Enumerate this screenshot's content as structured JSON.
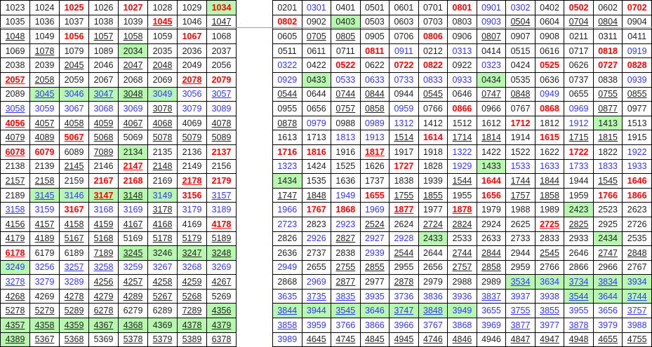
{
  "colors": {
    "red": "#ff0000",
    "blue": "#3333ff",
    "black": "#222222",
    "highlight": "#b7f7b0"
  },
  "left": {
    "values": [
      [
        "1023",
        "1024",
        "1025",
        "1026",
        "1027",
        "1028",
        "1029",
        "1034"
      ],
      [
        "1035",
        "1036",
        "1037",
        "1038",
        "1039",
        "1045",
        "1046",
        "1047"
      ],
      [
        "1048",
        "1049",
        "1056",
        "1057",
        "1058",
        "1059",
        "1067",
        "1068"
      ],
      [
        "1069",
        "1078",
        "1079",
        "1089",
        "2034",
        "2035",
        "2036",
        "2037"
      ],
      [
        "2038",
        "2039",
        "2045",
        "2046",
        "2047",
        "2048",
        "2049",
        "2056"
      ],
      [
        "2057",
        "2058",
        "2059",
        "2067",
        "2068",
        "2069",
        "2078",
        "2079"
      ],
      [
        "2089",
        "3045",
        "3046",
        "3047",
        "3048",
        "3049",
        "3056",
        "3057"
      ],
      [
        "3058",
        "3059",
        "3067",
        "3068",
        "3069",
        "3078",
        "3079",
        "3089"
      ],
      [
        "4056",
        "4057",
        "4058",
        "4059",
        "4067",
        "4068",
        "4069",
        "4078"
      ],
      [
        "4079",
        "4089",
        "5067",
        "5068",
        "5069",
        "5078",
        "5079",
        "5089"
      ],
      [
        "6078",
        "6079",
        "6089",
        "7089",
        "2134",
        "2135",
        "2136",
        "2137"
      ],
      [
        "2138",
        "2139",
        "2145",
        "2146",
        "2147",
        "2148",
        "2149",
        "2156"
      ],
      [
        "2157",
        "2158",
        "2159",
        "2167",
        "2168",
        "2169",
        "2178",
        "2179"
      ],
      [
        "2189",
        "3145",
        "3146",
        "3147",
        "3148",
        "3149",
        "3156",
        "3157"
      ],
      [
        "3158",
        "3159",
        "3167",
        "3168",
        "3169",
        "3178",
        "3179",
        "3189"
      ],
      [
        "4156",
        "4157",
        "4158",
        "4159",
        "4167",
        "4168",
        "4169",
        "4178"
      ],
      [
        "4179",
        "4189",
        "5167",
        "5168",
        "5169",
        "5178",
        "5179",
        "5189"
      ],
      [
        "6178",
        "6179",
        "6189",
        "7189",
        "3245",
        "3246",
        "3247",
        "3248"
      ],
      [
        "3249",
        "3256",
        "3257",
        "3258",
        "3259",
        "3267",
        "3268",
        "3269"
      ],
      [
        "3278",
        "3279",
        "3289",
        "4256",
        "4257",
        "4258",
        "4259",
        "4267"
      ],
      [
        "4268",
        "4269",
        "4278",
        "4279",
        "4289",
        "5267",
        "5268",
        "5269"
      ],
      [
        "5278",
        "5279",
        "5289",
        "6278",
        "6279",
        "6289",
        "7289",
        "4356"
      ],
      [
        "4357",
        "4358",
        "4359",
        "4367",
        "4368",
        "4369",
        "4378",
        "4379"
      ],
      [
        "4389",
        "5367",
        "5368",
        "5369",
        "5378",
        "5379",
        "5389",
        "6378"
      ]
    ],
    "styles": [
      "- - r - r - - rg",
      "- - - - - ru - u",
      "u - r u u - r -",
      "- u - - g - - -",
      "- - u - u u - -",
      "ru u - - - - ru r",
      "- gub gb gub gu gb b ub",
      "ub b b b b u b b",
      "ru u u u u u - u",
      "u u ru u - u u u",
      "ru r - u g - - r",
      "- - u - ru u - -",
      "u u - r r - ru r",
      "- gub gb gru gu gb r ub",
      "ub b r b b u b b",
      "u u u u u u - ru",
      "u u u u - u u u",
      "ru - - u gu g gu gu",
      "gb b ub ub b b b b",
      "ub b b u u u u u",
      "u - u u u u u -",
      "u u u u - - u gu",
      "gu gu gu gu gu g gu gu",
      "gu u u - u u u u"
    ]
  },
  "right": {
    "values": [
      [
        "0201",
        "0301",
        "0401",
        "0501",
        "0601",
        "0701",
        "0801",
        "0901",
        "0302",
        "0402",
        "0502",
        "0602",
        "0702"
      ],
      [
        "0802",
        "0902",
        "0403",
        "0503",
        "0603",
        "0703",
        "0803",
        "0903",
        "0504",
        "0604",
        "0704",
        "0804",
        "0904"
      ],
      [
        "0605",
        "0705",
        "0805",
        "0905",
        "0706",
        "0806",
        "0906",
        "0807",
        "0907",
        "0908",
        "0211",
        "0311",
        "0411"
      ],
      [
        "0511",
        "0611",
        "0711",
        "0811",
        "0911",
        "0212",
        "0313",
        "0414",
        "0515",
        "0616",
        "0717",
        "0818",
        "0919"
      ],
      [
        "0322",
        "0422",
        "0522",
        "0622",
        "0722",
        "0822",
        "0922",
        "0323",
        "0424",
        "0525",
        "0626",
        "0727",
        "0828"
      ],
      [
        "0929",
        "0433",
        "0533",
        "0633",
        "0733",
        "0833",
        "0933",
        "0434",
        "0535",
        "0636",
        "0737",
        "0838",
        "0939"
      ],
      [
        "0544",
        "0644",
        "0744",
        "0844",
        "0944",
        "0545",
        "0646",
        "0747",
        "0848",
        "0949",
        "0655",
        "0755",
        "0855"
      ],
      [
        "0955",
        "0656",
        "0757",
        "0858",
        "0959",
        "0766",
        "0866",
        "0966",
        "0767",
        "0868",
        "0969",
        "0877",
        "0977"
      ],
      [
        "0878",
        "0979",
        "0988",
        "0989",
        "1312",
        "1412",
        "1512",
        "1612",
        "1712",
        "1812",
        "1912",
        "1413",
        "1513"
      ],
      [
        "1613",
        "1713",
        "1813",
        "1913",
        "1514",
        "1614",
        "1714",
        "1814",
        "1914",
        "1615",
        "1715",
        "1815",
        "1915"
      ],
      [
        "1716",
        "1816",
        "1916",
        "1817",
        "1917",
        "1918",
        "1322",
        "1422",
        "1522",
        "1622",
        "1722",
        "1822",
        "1922"
      ],
      [
        "1323",
        "1424",
        "1525",
        "1626",
        "1727",
        "1828",
        "1929",
        "1433",
        "1533",
        "1633",
        "1733",
        "1833",
        "1933"
      ],
      [
        "1434",
        "1535",
        "1636",
        "1737",
        "1838",
        "1939",
        "1544",
        "1644",
        "1744",
        "1844",
        "1944",
        "1545",
        "1646"
      ],
      [
        "1747",
        "1848",
        "1949",
        "1655",
        "1755",
        "1855",
        "1955",
        "1656",
        "1757",
        "1858",
        "1959",
        "1766",
        "1866"
      ],
      [
        "1966",
        "1767",
        "1868",
        "1969",
        "1877",
        "1977",
        "1878",
        "1979",
        "1988",
        "1989",
        "2423",
        "2523",
        "2623"
      ],
      [
        "2723",
        "2823",
        "2923",
        "2524",
        "2624",
        "2724",
        "2824",
        "2924",
        "2625",
        "2725",
        "2825",
        "2925",
        "2726"
      ],
      [
        "2826",
        "2926",
        "2827",
        "2927",
        "2928",
        "2433",
        "2533",
        "2633",
        "2733",
        "2833",
        "2933",
        "2434",
        "2535"
      ],
      [
        "2636",
        "2737",
        "2838",
        "2939",
        "2544",
        "2644",
        "2744",
        "2844",
        "2944",
        "2545",
        "2646",
        "2747",
        "2848"
      ],
      [
        "2949",
        "2655",
        "2755",
        "2855",
        "2955",
        "2656",
        "2757",
        "2858",
        "2959",
        "2766",
        "2866",
        "2966",
        "2767"
      ],
      [
        "2868",
        "2969",
        "2877",
        "2977",
        "2878",
        "2979",
        "2988",
        "2989",
        "3534",
        "3634",
        "3734",
        "3834",
        "3934"
      ],
      [
        "3635",
        "3735",
        "3835",
        "3935",
        "3736",
        "3836",
        "3936",
        "3837",
        "3937",
        "3938",
        "3544",
        "3644",
        "3744"
      ],
      [
        "3844",
        "3944",
        "3545",
        "3646",
        "3747",
        "3848",
        "3949",
        "3655",
        "3755",
        "3855",
        "3955",
        "3656",
        "3757"
      ],
      [
        "3858",
        "3959",
        "3766",
        "3866",
        "3966",
        "3767",
        "3868",
        "3969",
        "3877",
        "3977",
        "3878",
        "3979",
        "3988"
      ],
      [
        "3989",
        "4645",
        "4745",
        "4845",
        "4945",
        "4746",
        "4846",
        "4946",
        "4847",
        "4947",
        "4948",
        "4655",
        "4755"
      ]
    ],
    "styles": [
      "- b - - - - r b b - r - r",
      "r - g - - - - b u - u u -",
      "- u u - - r - u - - - - -",
      "- - - r b - b - - - - r b",
      "b - r - r r - b - r - r r",
      "b g b b b b b g - - - - b",
      "u - u u - u - u u b - u u",
      "- - u u b - r - - r b u -",
      "u b - b b - - - r - b g -",
      "- - b b u r u u - r u u -",
      "r r - ru - - b - - - r - b",
      "b - - - r - b g b b b b b",
      "g - - - - - u r u u - u r",
      "u u b r u u - r u u - r r",
      "b r r b ru - ru - - - g - -",
      "b - b u - u u - - ru u - -",
      "- b u b b g - - - - - g -",
      "- - - b u - u u - u - u u",
      "b - u u - - u u - - - - -",
      "- b u - u - - - gub gb gub gub gb",
      "b ub ub b b b b ub b b gub gb gub",
      "gub gb gub gb gub gub gb b ub ub b b ub",
      "ub b b b b b b b ub b ub b b",
      "b u u u u u u - u u u u u"
    ]
  }
}
